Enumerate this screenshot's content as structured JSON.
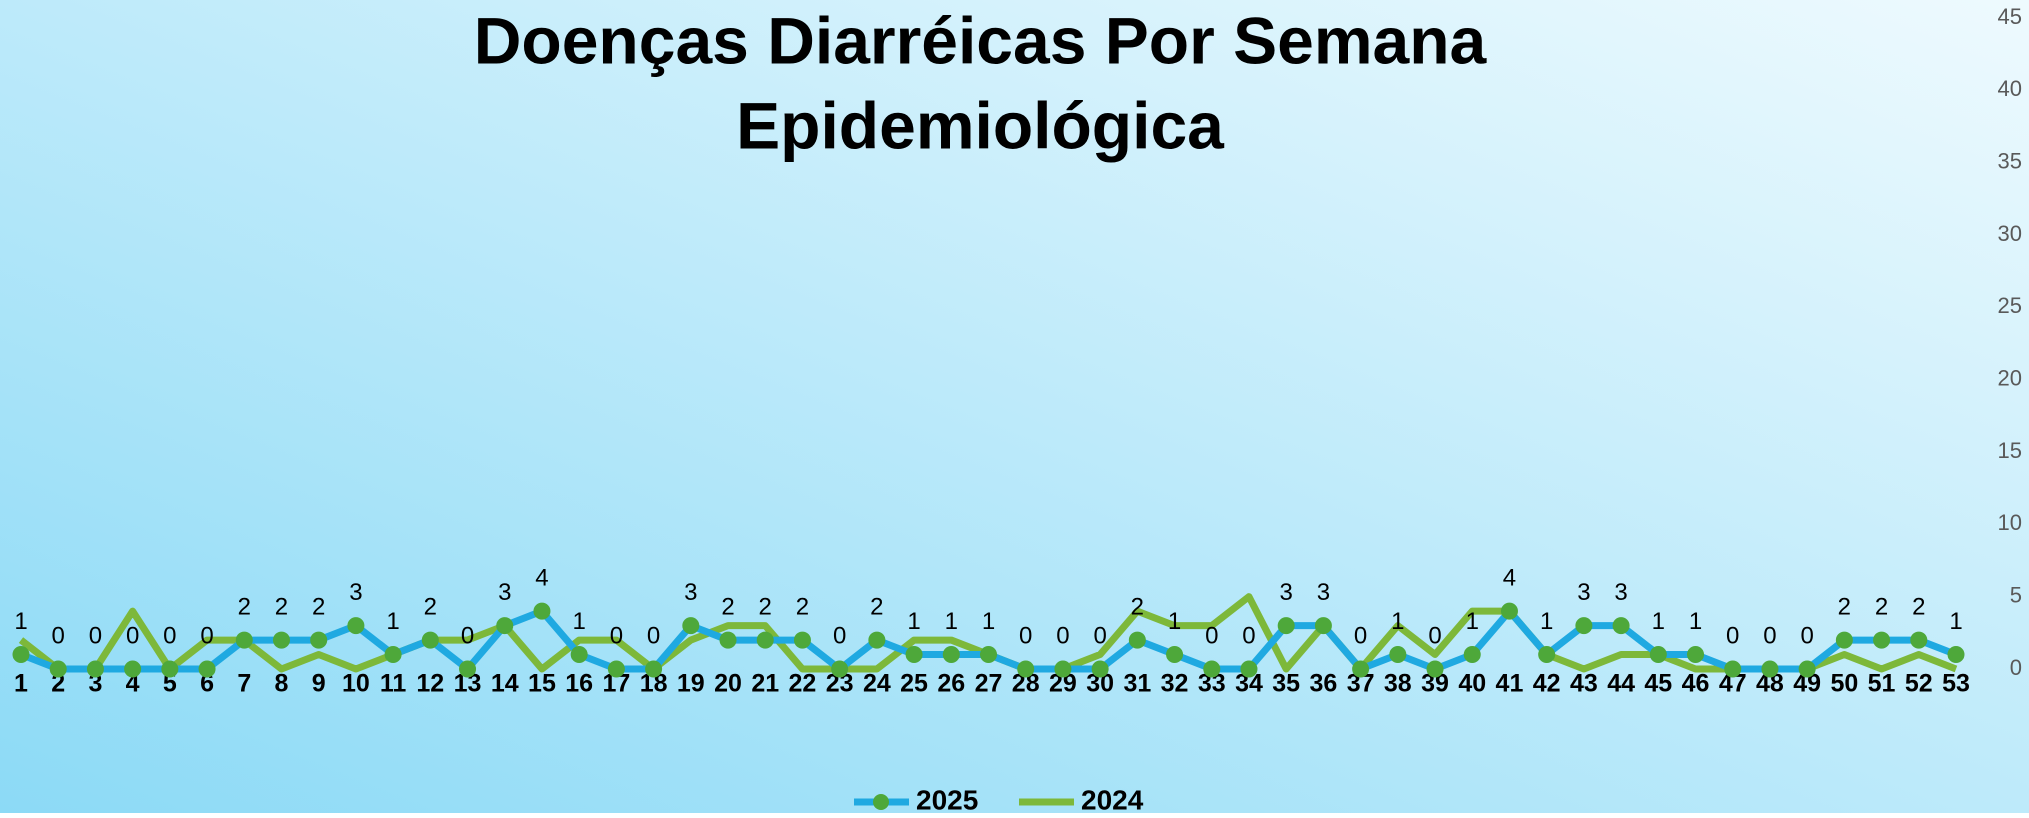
{
  "chart_data": {
    "type": "line",
    "title": [
      "Doenças Diarréicas Por Semana",
      "Epidemiológica"
    ],
    "categories": [
      "1",
      "2",
      "3",
      "4",
      "5",
      "6",
      "7",
      "8",
      "9",
      "10",
      "11",
      "12",
      "13",
      "14",
      "15",
      "16",
      "17",
      "18",
      "19",
      "20",
      "21",
      "22",
      "23",
      "24",
      "25",
      "26",
      "27",
      "28",
      "29",
      "30",
      "31",
      "32",
      "33",
      "34",
      "35",
      "36",
      "37",
      "38",
      "39",
      "40",
      "41",
      "42",
      "43",
      "44",
      "45",
      "46",
      "47",
      "48",
      "49",
      "50",
      "51",
      "52",
      "53"
    ],
    "series": [
      {
        "name": "2025",
        "color": "#1fa9e1",
        "marker_color": "#4ea83a",
        "data_labels": true,
        "values": [
          1,
          0,
          0,
          0,
          0,
          0,
          2,
          2,
          2,
          3,
          1,
          2,
          0,
          3,
          4,
          1,
          0,
          0,
          3,
          2,
          2,
          2,
          0,
          2,
          1,
          1,
          1,
          0,
          0,
          0,
          2,
          1,
          0,
          0,
          3,
          3,
          0,
          1,
          0,
          1,
          4,
          1,
          3,
          3,
          1,
          1,
          0,
          0,
          0,
          2,
          2,
          2,
          1
        ]
      },
      {
        "name": "2024",
        "color": "#7db83a",
        "values": [
          2,
          0,
          0,
          4,
          0,
          2,
          2,
          0,
          1,
          0,
          1,
          2,
          2,
          3,
          0,
          2,
          2,
          0,
          2,
          3,
          3,
          0,
          0,
          0,
          2,
          2,
          1,
          0,
          0,
          1,
          4,
          3,
          3,
          5,
          0,
          3,
          0,
          3,
          1,
          4,
          4,
          1,
          0,
          1,
          1,
          0,
          0,
          0,
          0,
          1,
          0,
          1,
          0
        ]
      }
    ],
    "ylim": [
      0,
      45
    ],
    "yticks": [
      0,
      5,
      10,
      15,
      20,
      25,
      30,
      35,
      40,
      45
    ],
    "y_axis_side": "right",
    "grid": false,
    "legend": "bottom"
  }
}
